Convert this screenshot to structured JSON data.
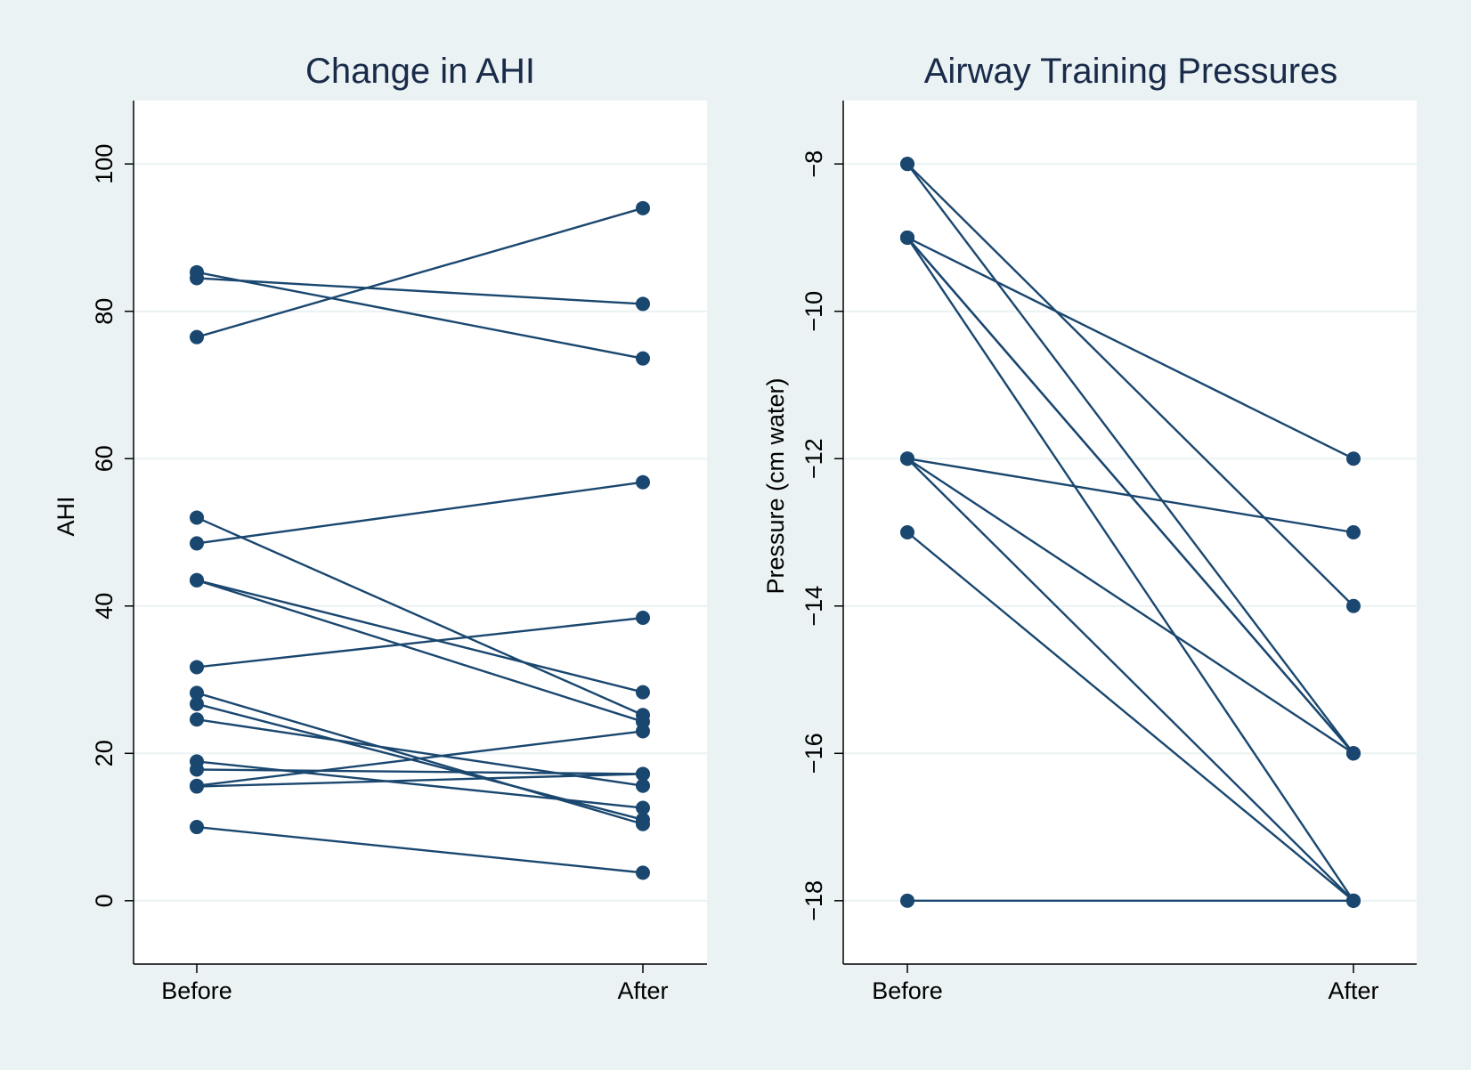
{
  "style": {
    "background": "#eaf2f3",
    "plot_background": "#ffffff",
    "series_color": "#1a476f",
    "grid_color": "#eaf2f3",
    "title_color": "#1a2b4a"
  },
  "chart_data": [
    {
      "type": "line",
      "subtype": "paired-slope",
      "title": "Change in AHI",
      "xlabel": "",
      "ylabel": "AHI",
      "categories": [
        "Before",
        "After"
      ],
      "ylim": [
        -8.6,
        108.6
      ],
      "yticks": [
        0,
        20,
        40,
        60,
        80,
        100
      ],
      "ytick_labels": [
        "0",
        "20",
        "40",
        "60",
        "80",
        "100"
      ],
      "grid": true,
      "legend": "none",
      "pairs": [
        [
          76.5,
          94.0
        ],
        [
          84.5,
          81.0
        ],
        [
          85.3,
          73.6
        ],
        [
          48.5,
          56.8
        ],
        [
          31.7,
          38.4
        ],
        [
          52.0,
          25.2
        ],
        [
          43.5,
          24.3
        ],
        [
          15.6,
          23.0
        ],
        [
          28.2,
          10.4
        ],
        [
          26.7,
          11.0
        ],
        [
          24.6,
          15.6
        ],
        [
          18.9,
          12.6
        ],
        [
          17.8,
          17.2
        ],
        [
          15.5,
          17.2
        ],
        [
          10.0,
          3.8
        ],
        [
          43.5,
          28.3
        ]
      ]
    },
    {
      "type": "line",
      "subtype": "paired-slope",
      "title": "Airway Training Pressures",
      "xlabel": "",
      "ylabel": "Pressure (cm water)",
      "categories": [
        "Before",
        "After"
      ],
      "ylim": [
        -18.86,
        -7.14
      ],
      "yticks": [
        -8,
        -10,
        -12,
        -14,
        -16,
        -18
      ],
      "ytick_labels": [
        "−8",
        "−10",
        "−12",
        "−14",
        "−16",
        "−18"
      ],
      "grid": true,
      "legend": "none",
      "pairs": [
        [
          -8,
          -14
        ],
        [
          -8,
          -16
        ],
        [
          -9,
          -12
        ],
        [
          -9,
          -16
        ],
        [
          -9,
          -16
        ],
        [
          -9,
          -18
        ],
        [
          -12,
          -13
        ],
        [
          -12,
          -16
        ],
        [
          -12,
          -18
        ],
        [
          -13,
          -18
        ],
        [
          -18,
          -18
        ]
      ]
    }
  ]
}
